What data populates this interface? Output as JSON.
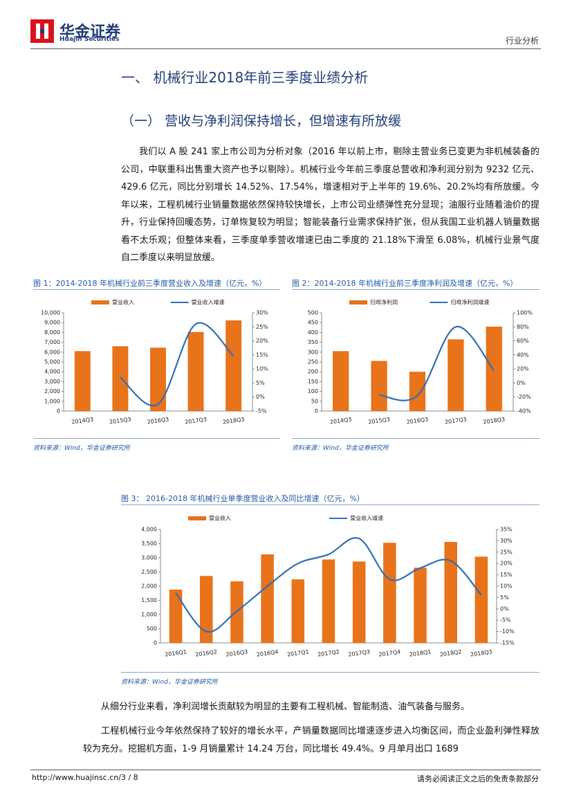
{
  "header": {
    "logo": "华金证券",
    "logo_en": "Huajin Securities",
    "section": "行业分析"
  },
  "heading1": "一、 机械行业2018年前三季度业绩分析",
  "heading2": "（一）  营收与净利润保持增长，但增速有所放缓",
  "paragraphs": [
    "我们以 A 股 241 家上市公司为分析对象（2016 年以前上市，剔除主营业务已变更为非机械装备的公司，中联重科出售重大资产也予以剔除）。机械行业今年前三季度总营收和净利润分别为 9232 亿元、429.6 亿元，同比分别增长 14.52%、17.54%，增速相对于上半年的 19.6%、20.2%均有所放缓。今年以来，工程机械行业销量数据依然保持较快增长，上市公司业绩弹性充分显现；油服行业随着油价的提升，行业保持回暖态势，订单恢复较为明显；智能装备行业需求保持扩张，但从我国工业机器人销量数据看不太乐观；但整体来看，三季度单季营收增速已由二季度的 21.18%下滑至 6.08%，机械行业景气度自二季度以来明显放缓。",
    "从细分行业来看，净利润增长贡献较为明显的主要有工程机械、智能制造、油气装备与服务。",
    "工程机械行业今年依然保持了较好的增长水平，产销量数据同比增速逐步进入均衡区间，而企业盈利弹性释放较为充分。挖掘机方面，1-9 月销量累计 14.24 万台，同比增长 49.4%。9 月单月出口 1689"
  ],
  "footer": {
    "url": "http://www.huajinsc.cn/3 / 8",
    "note": "请务必阅读正文之后的免责条款部分"
  },
  "chart_data": [
    {
      "type": "bar",
      "title": "图 1：2014-2018 年机械行业前三季度营业收入及增速（亿元，%）",
      "source": "资料来源：Wind，华金证券研究所",
      "categories": [
        "2014Q3",
        "2015Q3",
        "2016Q3",
        "2017Q3",
        "2018Q3"
      ],
      "series": [
        {
          "name": "营业收入",
          "type": "bar",
          "color": "#e8731a",
          "values": [
            6100,
            6600,
            6450,
            8050,
            9232
          ]
        },
        {
          "name": "营业收入增速",
          "type": "line",
          "axis": "y2",
          "color": "#2f6eba",
          "values": [
            null,
            7,
            -2.5,
            26,
            14.52
          ]
        }
      ],
      "ylim": [
        0,
        10000
      ],
      "yticks": [
        0,
        {
          "value": 1000,
          "label": "1,000"
        },
        {
          "value": 2000,
          "label": "2,000"
        },
        {
          "value": 3000,
          "label": "3,000"
        },
        {
          "value": 4000,
          "label": "4,000"
        },
        {
          "value": 5000,
          "label": "5,000"
        },
        {
          "value": 6000,
          "label": "6,000"
        },
        {
          "value": 7000,
          "label": "7,000"
        },
        {
          "value": 8000,
          "label": "8,000"
        },
        {
          "value": 9000,
          "label": "9,000"
        },
        {
          "value": 10000,
          "label": "10,000"
        }
      ],
      "y2lim": [
        -5,
        30
      ],
      "y2ticks": [
        {
          "value": -5,
          "label": "-5%"
        },
        {
          "value": 0,
          "label": "0%"
        },
        {
          "value": 5,
          "label": "5%"
        },
        {
          "value": 10,
          "label": "10%"
        },
        {
          "value": 15,
          "label": "15%"
        },
        {
          "value": 20,
          "label": "20%"
        },
        {
          "value": 25,
          "label": "25%"
        },
        {
          "value": 30,
          "label": "30%"
        }
      ]
    },
    {
      "type": "bar",
      "title": "图 2：2014-2018 年机械行业前三季度净利润及增速（亿元，%）",
      "source": "资料来源：Wind，华金证券研究所",
      "categories": [
        "2014Q3",
        "2015Q3",
        "2016Q3",
        "2017Q3",
        "2018Q3"
      ],
      "series": [
        {
          "name": "归母净利润",
          "type": "bar",
          "color": "#e8731a",
          "values": [
            305,
            255,
            200,
            365,
            429.6
          ]
        },
        {
          "name": "归母净利润增速",
          "type": "line",
          "axis": "y2",
          "color": "#2f6eba",
          "values": [
            null,
            -17,
            -18,
            80,
            17.54
          ]
        }
      ],
      "ylim": [
        0,
        500
      ],
      "yticks": [
        0,
        50,
        100,
        150,
        200,
        250,
        300,
        350,
        400,
        450,
        500
      ],
      "y2lim": [
        -40,
        100
      ],
      "y2ticks": [
        {
          "value": -40,
          "label": "-40%"
        },
        {
          "value": -20,
          "label": "-20%"
        },
        {
          "value": 0,
          "label": "0%"
        },
        {
          "value": 20,
          "label": "20%"
        },
        {
          "value": 40,
          "label": "40%"
        },
        {
          "value": 60,
          "label": "60%"
        },
        {
          "value": 80,
          "label": "80%"
        },
        {
          "value": 100,
          "label": "100%"
        }
      ]
    },
    {
      "type": "bar",
      "title": "图 3：  2016-2018 年机械行业单季度营业收入及同比增速（亿元，%）",
      "source": "资料来源：Wind，华金证券研究所",
      "categories": [
        "2016Q1",
        "2016Q2",
        "2016Q3",
        "2016Q4",
        "2017Q1",
        "2017Q2",
        "2017Q3",
        "2017Q4",
        "2018Q1",
        "2018Q2",
        "2018Q3"
      ],
      "series": [
        {
          "name": "营业收入",
          "type": "bar",
          "color": "#e8731a",
          "values": [
            1880,
            2360,
            2170,
            3120,
            2240,
            2940,
            2870,
            3530,
            2650,
            3560,
            3040
          ]
        },
        {
          "name": "营业收入增速",
          "type": "line",
          "axis": "y2",
          "color": "#2f6eba",
          "values": [
            7,
            -10,
            -1,
            10,
            20,
            24,
            31,
            13,
            18,
            21.18,
            6.08
          ]
        }
      ],
      "ylim": [
        0,
        4000
      ],
      "yticks": [
        0,
        {
          "value": 500,
          "label": "500"
        },
        {
          "value": 1000,
          "label": "1,000"
        },
        {
          "value": 1500,
          "label": "1,500"
        },
        {
          "value": 2000,
          "label": "2,000"
        },
        {
          "value": 2500,
          "label": "2,500"
        },
        {
          "value": 3000,
          "label": "3,000"
        },
        {
          "value": 3500,
          "label": "3,500"
        },
        {
          "value": 4000,
          "label": "4,000"
        }
      ],
      "y2lim": [
        -15,
        35
      ],
      "y2ticks": [
        {
          "value": -15,
          "label": "-15%"
        },
        {
          "value": -10,
          "label": "-10%"
        },
        {
          "value": -5,
          "label": "-5%"
        },
        {
          "value": 0,
          "label": "0%"
        },
        {
          "value": 5,
          "label": "5%"
        },
        {
          "value": 10,
          "label": "10%"
        },
        {
          "value": 15,
          "label": "15%"
        },
        {
          "value": 20,
          "label": "20%"
        },
        {
          "value": 25,
          "label": "25%"
        },
        {
          "value": 30,
          "label": "30%"
        },
        {
          "value": 35,
          "label": "35%"
        }
      ]
    }
  ]
}
